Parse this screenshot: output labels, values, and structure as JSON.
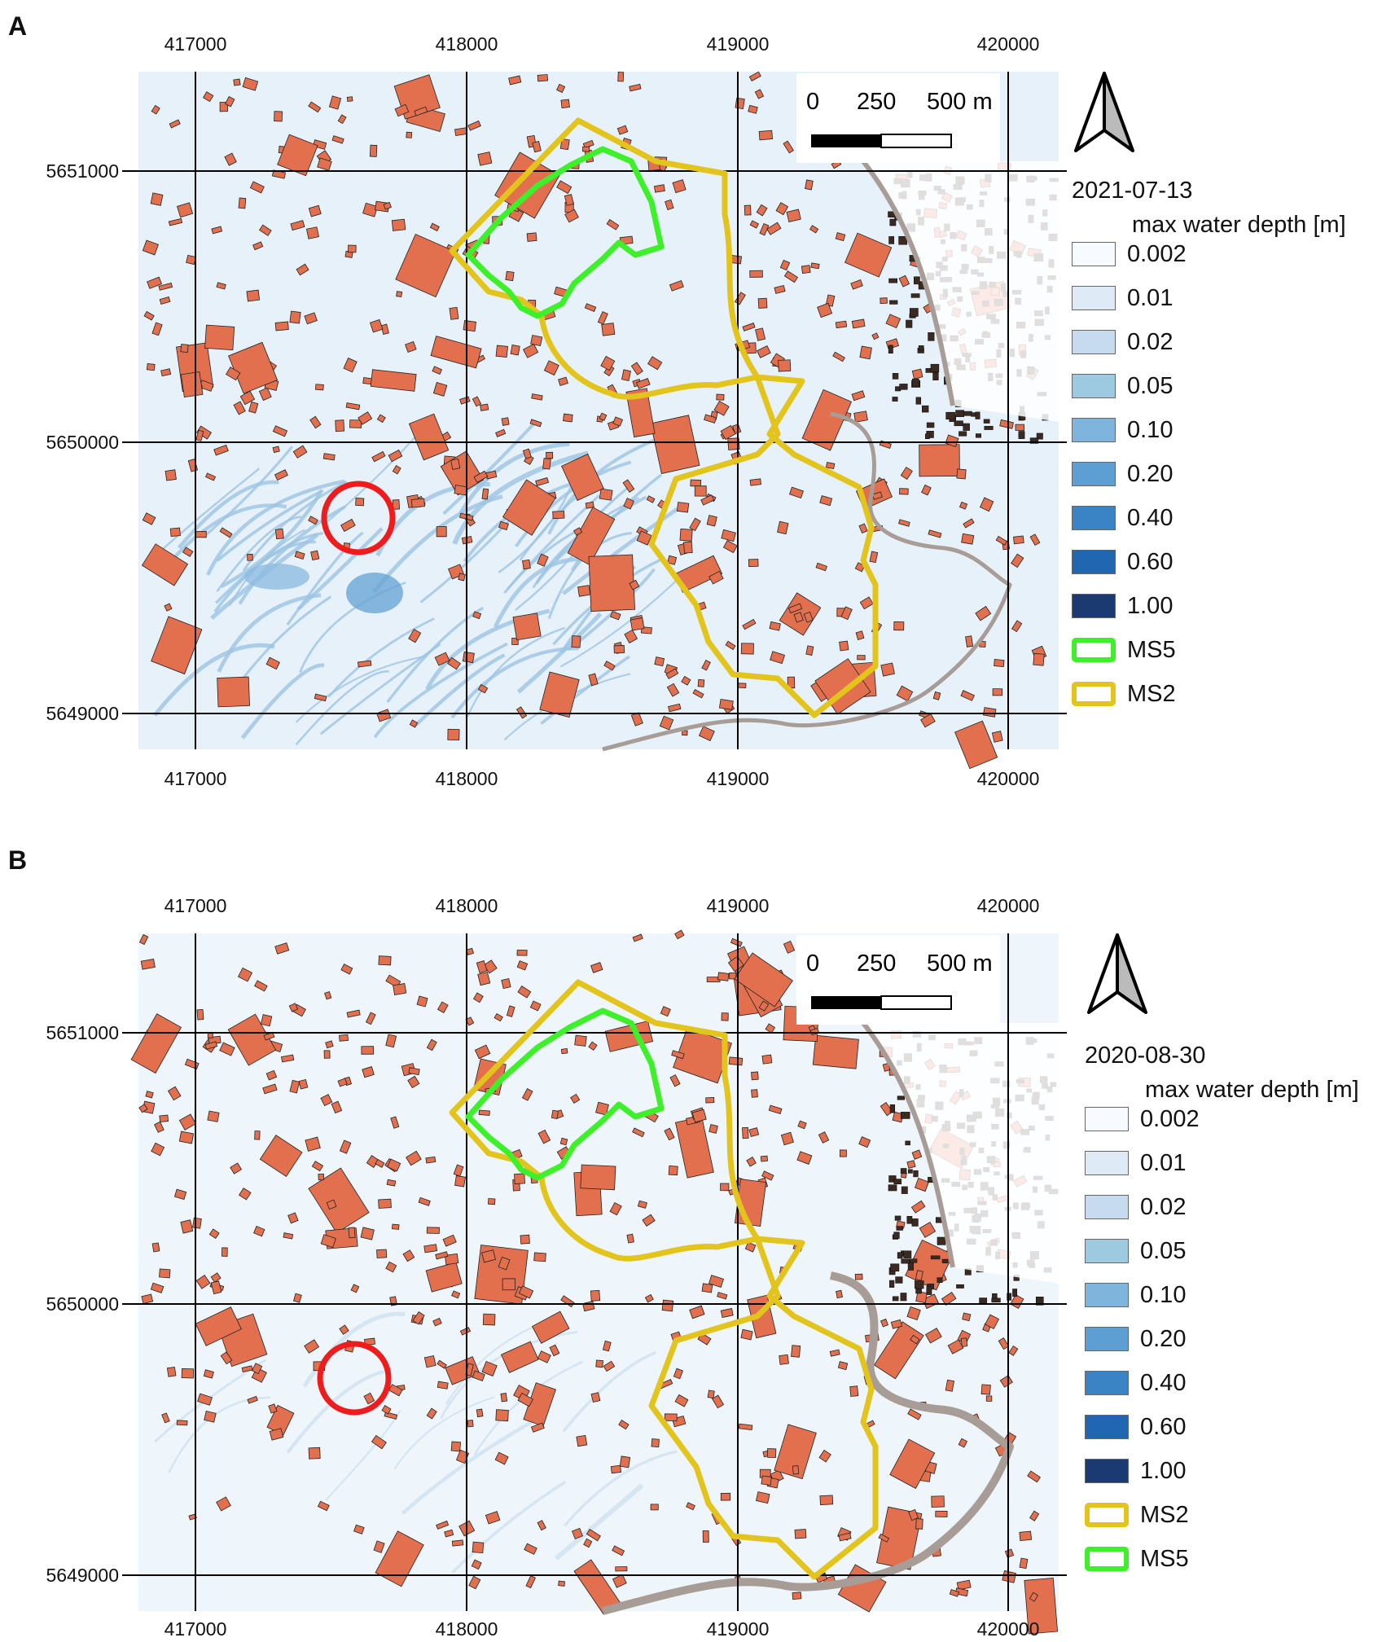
{
  "panels": [
    {
      "letter": "A",
      "date": "2021-07-13",
      "unit_label": "max water depth [m]",
      "legend_classes": [
        {
          "label": "0.002",
          "color": "#f7fbff"
        },
        {
          "label": "0.01",
          "color": "#deebf7"
        },
        {
          "label": "0.02",
          "color": "#c6dbef"
        },
        {
          "label": "0.05",
          "color": "#9ecae1"
        },
        {
          "label": "0.10",
          "color": "#7fb5dc"
        },
        {
          "label": "0.20",
          "color": "#5d9fd3"
        },
        {
          "label": "0.40",
          "color": "#3a84c5"
        },
        {
          "label": "0.60",
          "color": "#2066b1"
        },
        {
          "label": "1.00",
          "color": "#1c3a72"
        }
      ],
      "outlines": [
        {
          "label": "MS5",
          "color": "#3ef02a"
        },
        {
          "label": "MS2",
          "color": "#e2c41c"
        }
      ]
    },
    {
      "letter": "B",
      "date": "2020-08-30",
      "unit_label": "max water depth [m]",
      "legend_classes": [
        {
          "label": "0.002",
          "color": "#f7fbff"
        },
        {
          "label": "0.01",
          "color": "#deebf7"
        },
        {
          "label": "0.02",
          "color": "#c6dbef"
        },
        {
          "label": "0.05",
          "color": "#9ecae1"
        },
        {
          "label": "0.10",
          "color": "#7fb5dc"
        },
        {
          "label": "0.20",
          "color": "#5d9fd3"
        },
        {
          "label": "0.40",
          "color": "#3a84c5"
        },
        {
          "label": "0.60",
          "color": "#2066b1"
        },
        {
          "label": "1.00",
          "color": "#1c3a72"
        }
      ],
      "outlines": [
        {
          "label": "MS2",
          "color": "#e2c41c"
        },
        {
          "label": "MS5",
          "color": "#3ef02a"
        }
      ]
    }
  ],
  "grid": {
    "x_labels": [
      "417000",
      "418000",
      "419000",
      "420000"
    ],
    "y_labels": [
      "5651000",
      "5650000",
      "5649000"
    ]
  },
  "scale_bar": {
    "labels": [
      "0",
      "250",
      "500 m"
    ]
  },
  "colors": {
    "building": "#e2704f",
    "marker_circle": "#ee1c1c",
    "river_outline": "#a89c96",
    "grid_line": "#000000"
  },
  "icons": {
    "north_arrow": "north-arrow-icon"
  }
}
